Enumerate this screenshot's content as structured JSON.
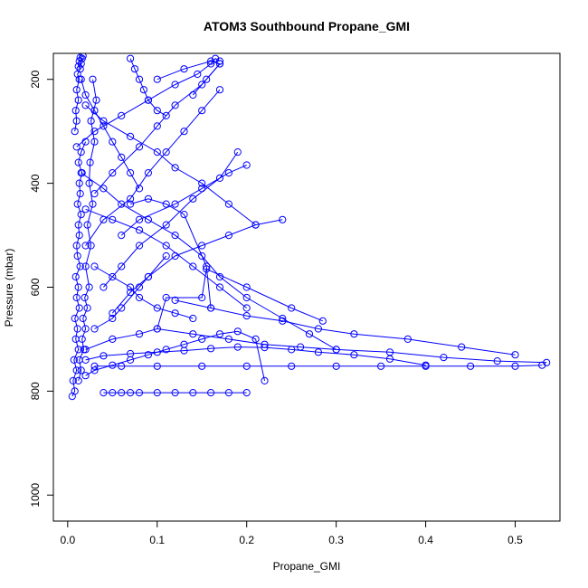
{
  "chart_data": {
    "type": "line",
    "title": "ATOM3 Southbound Propane_GMI",
    "xlabel": "Propane_GMI",
    "ylabel": "Pressure (mbar)",
    "xlim": [
      -0.016,
      0.55
    ],
    "ylim": [
      1050,
      150
    ],
    "y_reversed": true,
    "x_ticks": [
      0.0,
      0.1,
      0.2,
      0.3,
      0.4,
      0.5
    ],
    "x_tick_labels": [
      "0.0",
      "0.1",
      "0.2",
      "0.3",
      "0.4",
      "0.5"
    ],
    "y_ticks": [
      200,
      400,
      600,
      800,
      1000
    ],
    "y_tick_labels": [
      "200",
      "400",
      "600",
      "800",
      "1000"
    ],
    "grid": false,
    "series_color": "#0000ff",
    "marker": "open-circle",
    "series": [
      {
        "x": [
          0.005,
          0.008,
          0.006,
          0.01,
          0.007,
          0.012,
          0.009,
          0.011,
          0.008,
          0.013,
          0.01,
          0.012,
          0.009,
          0.014,
          0.011,
          0.01,
          0.013,
          0.012,
          0.015,
          0.011,
          0.014,
          0.013,
          0.016,
          0.012,
          0.015,
          0.02
        ],
        "y": [
          810,
          800,
          780,
          760,
          740,
          720,
          700,
          680,
          660,
          640,
          620,
          600,
          580,
          560,
          540,
          520,
          500,
          480,
          460,
          440,
          420,
          400,
          380,
          360,
          340,
          320
        ]
      },
      {
        "x": [
          0.012,
          0.015,
          0.013,
          0.018,
          0.016,
          0.02,
          0.017,
          0.022,
          0.019,
          0.024,
          0.02,
          0.026,
          0.022,
          0.028,
          0.024,
          0.025,
          0.03,
          0.026,
          0.032,
          0.028
        ],
        "y": [
          780,
          760,
          740,
          720,
          700,
          680,
          660,
          640,
          620,
          600,
          560,
          520,
          480,
          440,
          400,
          360,
          320,
          280,
          240,
          200
        ]
      },
      {
        "x": [
          0.008,
          0.01,
          0.009,
          0.012,
          0.01,
          0.013,
          0.011,
          0.014,
          0.012,
          0.015,
          0.013,
          0.016,
          0.014,
          0.017
        ],
        "y": [
          300,
          280,
          260,
          240,
          220,
          200,
          190,
          180,
          175,
          170,
          165,
          160,
          158,
          155
        ]
      },
      {
        "x": [
          0.04,
          0.05,
          0.06,
          0.07,
          0.08,
          0.1,
          0.12,
          0.14,
          0.16,
          0.18,
          0.2
        ],
        "y": [
          803,
          803,
          803,
          803,
          803,
          803,
          803,
          803,
          803,
          803,
          803
        ]
      },
      {
        "x": [
          0.03,
          0.06,
          0.1,
          0.15,
          0.2,
          0.25,
          0.3,
          0.35,
          0.4,
          0.45,
          0.5,
          0.53
        ],
        "y": [
          752,
          752,
          752,
          752,
          752,
          752,
          752,
          752,
          752,
          752,
          752,
          750
        ]
      },
      {
        "x": [
          0.1,
          0.14,
          0.18,
          0.22,
          0.26,
          0.3,
          0.36,
          0.42,
          0.48,
          0.535
        ],
        "y": [
          680,
          690,
          700,
          710,
          715,
          720,
          725,
          735,
          742,
          745
        ]
      },
      {
        "x": [
          0.12,
          0.16,
          0.2,
          0.24,
          0.28,
          0.32,
          0.38,
          0.44,
          0.5
        ],
        "y": [
          625,
          640,
          655,
          665,
          680,
          690,
          700,
          715,
          730
        ]
      },
      {
        "x": [
          0.02,
          0.05,
          0.08,
          0.1,
          0.11,
          0.15,
          0.155,
          0.2,
          0.25,
          0.285
        ],
        "y": [
          720,
          700,
          690,
          680,
          620,
          620,
          565,
          600,
          640,
          665
        ]
      },
      {
        "x": [
          0.02,
          0.04,
          0.07,
          0.1,
          0.13,
          0.16,
          0.19,
          0.22,
          0.25,
          0.28,
          0.32,
          0.36,
          0.4
        ],
        "y": [
          740,
          732,
          728,
          725,
          722,
          718,
          715,
          716,
          720,
          725,
          730,
          738,
          750
        ]
      },
      {
        "x": [
          0.015,
          0.04,
          0.06,
          0.09,
          0.12,
          0.15,
          0.17,
          0.2,
          0.24,
          0.27,
          0.3
        ],
        "y": [
          380,
          410,
          440,
          470,
          500,
          540,
          580,
          620,
          660,
          690,
          720
        ]
      },
      {
        "x": [
          0.02,
          0.05,
          0.08,
          0.11,
          0.14,
          0.17,
          0.2
        ],
        "y": [
          450,
          470,
          490,
          520,
          560,
          600,
          640
        ]
      },
      {
        "x": [
          0.02,
          0.04,
          0.07,
          0.1,
          0.12,
          0.15,
          0.18,
          0.21
        ],
        "y": [
          250,
          280,
          310,
          340,
          370,
          400,
          440,
          480
        ]
      },
      {
        "x": [
          0.01,
          0.03,
          0.06,
          0.09,
          0.12,
          0.145,
          0.16,
          0.165,
          0.17
        ],
        "y": [
          330,
          300,
          270,
          240,
          210,
          190,
          170,
          160,
          165
        ]
      },
      {
        "x": [
          0.03,
          0.05,
          0.08,
          0.1,
          0.12,
          0.15,
          0.17
        ],
        "y": [
          420,
          380,
          330,
          290,
          250,
          210,
          170
        ]
      },
      {
        "x": [
          0.02,
          0.04,
          0.07,
          0.09,
          0.11,
          0.13,
          0.15,
          0.17
        ],
        "y": [
          520,
          470,
          430,
          380,
          340,
          300,
          260,
          220
        ]
      },
      {
        "x": [
          0.04,
          0.06,
          0.08,
          0.11,
          0.14,
          0.17,
          0.19
        ],
        "y": [
          600,
          560,
          520,
          480,
          430,
          390,
          340
        ]
      },
      {
        "x": [
          0.05,
          0.07,
          0.09,
          0.12,
          0.15,
          0.18,
          0.21,
          0.24
        ],
        "y": [
          650,
          610,
          580,
          540,
          520,
          500,
          480,
          470
        ]
      },
      {
        "x": [
          0.03,
          0.05,
          0.07,
          0.08,
          0.1,
          0.12,
          0.14
        ],
        "y": [
          560,
          580,
          600,
          620,
          640,
          650,
          660
        ]
      },
      {
        "x": [
          0.02,
          0.03,
          0.05,
          0.07,
          0.09,
          0.11,
          0.13,
          0.15,
          0.17,
          0.19,
          0.21,
          0.22
        ],
        "y": [
          770,
          760,
          750,
          740,
          730,
          720,
          710,
          700,
          690,
          685,
          700,
          780
        ]
      },
      {
        "x": [
          0.06,
          0.08,
          0.12,
          0.15,
          0.18,
          0.2
        ],
        "y": [
          500,
          470,
          440,
          410,
          380,
          365
        ]
      },
      {
        "x": [
          0.07,
          0.09,
          0.11,
          0.13,
          0.155,
          0.16
        ],
        "y": [
          440,
          430,
          440,
          460,
          560,
          640
        ]
      },
      {
        "x": [
          0.03,
          0.05,
          0.06,
          0.08,
          0.09,
          0.11
        ],
        "y": [
          680,
          660,
          640,
          600,
          580,
          540
        ]
      },
      {
        "x": [
          0.015,
          0.02,
          0.03,
          0.04,
          0.05,
          0.06,
          0.07,
          0.08
        ],
        "y": [
          200,
          230,
          260,
          290,
          320,
          350,
          380,
          410
        ]
      },
      {
        "x": [
          0.07,
          0.075,
          0.08,
          0.085,
          0.09,
          0.1,
          0.11
        ],
        "y": [
          160,
          180,
          200,
          220,
          240,
          260,
          270
        ]
      },
      {
        "x": [
          0.1,
          0.13,
          0.16,
          0.17,
          0.155,
          0.14
        ],
        "y": [
          200,
          180,
          165,
          170,
          200,
          230
        ]
      }
    ]
  }
}
